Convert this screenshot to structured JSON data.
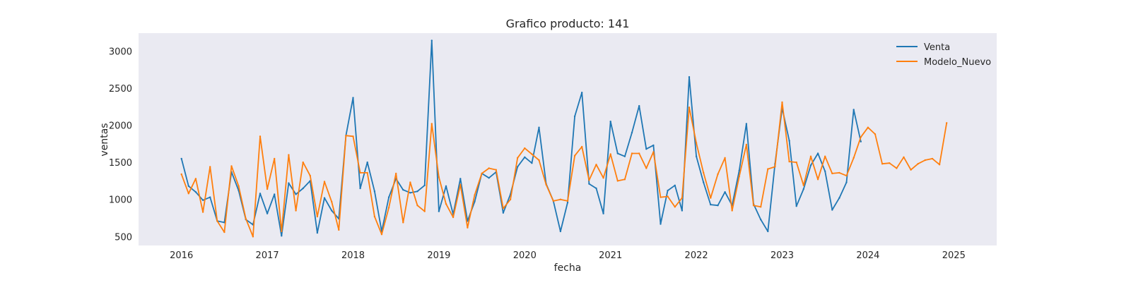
{
  "chart_data": {
    "type": "line",
    "title": "Grafico producto: 141",
    "xlabel": "fecha",
    "ylabel": "ventas",
    "x_axis_type": "date",
    "xlim": [
      "2015-07-01",
      "2025-07-01"
    ],
    "ylim": [
      380,
      3240
    ],
    "x_ticks": [
      "2016",
      "2017",
      "2018",
      "2019",
      "2020",
      "2021",
      "2022",
      "2023",
      "2024",
      "2025"
    ],
    "y_ticks": [
      500,
      1000,
      1500,
      2000,
      2500,
      3000
    ],
    "grid": false,
    "legend_position": "top-right",
    "background_color": "#eaeaf2",
    "series": [
      {
        "name": "Venta",
        "color": "#1f77b4",
        "start": "2016-01",
        "frequency": "monthly",
        "values": [
          1550,
          1180,
          1100,
          990,
          1030,
          710,
          690,
          1370,
          1120,
          730,
          660,
          1080,
          810,
          1070,
          510,
          1220,
          1070,
          1150,
          1250,
          550,
          1020,
          850,
          740,
          1860,
          2370,
          1150,
          1500,
          1110,
          570,
          1030,
          1280,
          1130,
          1090,
          1110,
          1190,
          3140,
          840,
          1180,
          800,
          1280,
          710,
          970,
          1350,
          1290,
          1370,
          820,
          1070,
          1440,
          1570,
          1490,
          1970,
          1210,
          980,
          570,
          960,
          2120,
          2440,
          1210,
          1150,
          810,
          2050,
          1620,
          1580,
          1900,
          2260,
          1680,
          1730,
          670,
          1120,
          1190,
          850,
          2650,
          1580,
          1230,
          930,
          920,
          1100,
          920,
          1390,
          2020,
          940,
          730,
          570,
          1480,
          2230,
          1790,
          910,
          1140,
          1460,
          1620,
          1380,
          860,
          1020,
          1230,
          2210,
          1780
        ]
      },
      {
        "name": "Modelo_Nuevo",
        "color": "#ff7f0e",
        "start": "2016-01",
        "frequency": "monthly",
        "values": [
          1340,
          1080,
          1280,
          830,
          1440,
          710,
          560,
          1450,
          1180,
          740,
          500,
          1850,
          1140,
          1550,
          570,
          1600,
          850,
          1500,
          1320,
          770,
          1240,
          970,
          590,
          1860,
          1850,
          1360,
          1360,
          770,
          530,
          890,
          1350,
          690,
          1230,
          920,
          840,
          2020,
          1300,
          940,
          760,
          1200,
          620,
          1060,
          1350,
          1420,
          1400,
          880,
          1000,
          1560,
          1690,
          1610,
          1530,
          1200,
          980,
          1000,
          980,
          1590,
          1710,
          1260,
          1470,
          1290,
          1610,
          1250,
          1270,
          1620,
          1620,
          1420,
          1640,
          1030,
          1040,
          900,
          1020,
          2240,
          1760,
          1360,
          1020,
          1340,
          1560,
          850,
          1310,
          1740,
          920,
          900,
          1410,
          1440,
          2310,
          1510,
          1500,
          1190,
          1580,
          1270,
          1580,
          1350,
          1360,
          1320,
          1560,
          1840,
          1970,
          1880,
          1480,
          1490,
          1420,
          1570,
          1400,
          1480,
          1530,
          1550,
          1470,
          2030
        ]
      }
    ]
  }
}
